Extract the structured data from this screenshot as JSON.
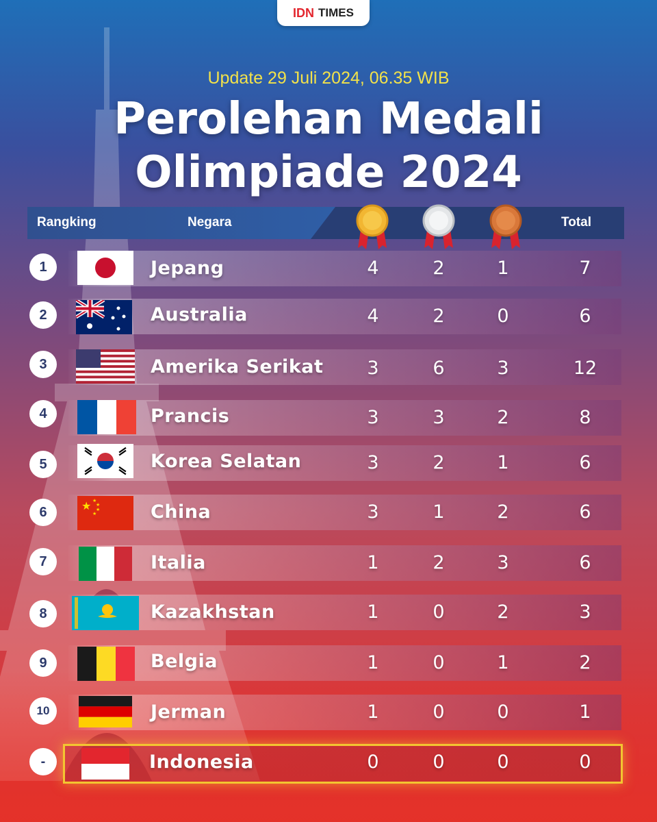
{
  "brand": {
    "idn": "IDN",
    "times": "TIMES"
  },
  "update_text": "Update 29 Juli 2024, 06.35 WIB",
  "title_line1": "Perolehan Medali",
  "title_line2": "Olimpiade 2024",
  "header": {
    "rank": "Rangking",
    "country": "Negara",
    "total": "Total"
  },
  "colors": {
    "gold": "#f2b632",
    "silver": "#e4e6e8",
    "bronze": "#d9783a",
    "highlight": "#f3c531",
    "ribbon": "#d9232e"
  },
  "rows": [
    {
      "rank": "1",
      "country": "Jepang",
      "flag": "japan-flag",
      "gold": "4",
      "silver": "2",
      "bronze": "1",
      "total": "7"
    },
    {
      "rank": "2",
      "country": "Australia",
      "flag": "australia-flag",
      "gold": "4",
      "silver": "2",
      "bronze": "0",
      "total": "6"
    },
    {
      "rank": "3",
      "country": "Amerika Serikat",
      "flag": "usa-flag",
      "gold": "3",
      "silver": "6",
      "bronze": "3",
      "total": "12"
    },
    {
      "rank": "4",
      "country": "Prancis",
      "flag": "france-flag",
      "gold": "3",
      "silver": "3",
      "bronze": "2",
      "total": "8"
    },
    {
      "rank": "5",
      "country": "Korea Selatan",
      "flag": "south-korea-flag",
      "gold": "3",
      "silver": "2",
      "bronze": "1",
      "total": "6"
    },
    {
      "rank": "6",
      "country": "China",
      "flag": "china-flag",
      "gold": "3",
      "silver": "1",
      "bronze": "2",
      "total": "6"
    },
    {
      "rank": "7",
      "country": "Italia",
      "flag": "italy-flag",
      "gold": "1",
      "silver": "2",
      "bronze": "3",
      "total": "6"
    },
    {
      "rank": "8",
      "country": "Kazakhstan",
      "flag": "kazakhstan-flag",
      "gold": "1",
      "silver": "0",
      "bronze": "2",
      "total": "3"
    },
    {
      "rank": "9",
      "country": "Belgia",
      "flag": "belgium-flag",
      "gold": "1",
      "silver": "0",
      "bronze": "1",
      "total": "2"
    },
    {
      "rank": "10",
      "country": "Jerman",
      "flag": "germany-flag",
      "gold": "1",
      "silver": "0",
      "bronze": "0",
      "total": "1"
    },
    {
      "rank": "-",
      "country": "Indonesia",
      "flag": "indonesia-flag",
      "gold": "0",
      "silver": "0",
      "bronze": "0",
      "total": "0"
    }
  ]
}
